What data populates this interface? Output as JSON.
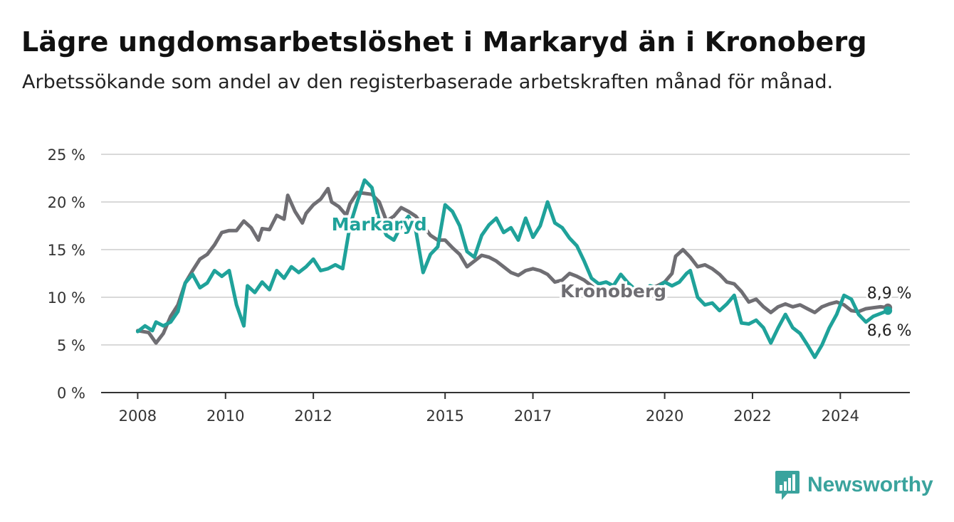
{
  "header": {
    "title": "Lägre ungdomsarbetslöshet i Markaryd än i Kronoberg",
    "subtitle": "Arbetssökande som andel av den registerbaserade arbetskraften månad för månad."
  },
  "brand": {
    "name": "Newsworthy",
    "color": "#3aa39d"
  },
  "chart_data": {
    "type": "line",
    "title": "Lägre ungdomsarbetslöshet i Markaryd än i Kronoberg",
    "subtitle": "Arbetssökande som andel av den registerbaserade arbetskraften månad för månad.",
    "xlabel": "",
    "ylabel": "",
    "x_ticks": [
      "2008",
      "2010",
      "2012",
      "2015",
      "2017",
      "2020",
      "2022",
      "2024"
    ],
    "y_ticks": [
      "0 %",
      "5 %",
      "10 %",
      "15 %",
      "20 %",
      "25 %"
    ],
    "ylim": [
      0,
      25
    ],
    "xlim": [
      "2007-03",
      "2025-08"
    ],
    "grid": "horizontal",
    "series": [
      {
        "name": "Kronoberg",
        "color": "#6f6e73",
        "end_label": "8,9 %",
        "points": [
          [
            "2008-01",
            6.5
          ],
          [
            "2008-04",
            6.3
          ],
          [
            "2008-06",
            5.2
          ],
          [
            "2008-08",
            6.2
          ],
          [
            "2008-10",
            8.0
          ],
          [
            "2008-12",
            9.2
          ],
          [
            "2009-02",
            11.5
          ],
          [
            "2009-04",
            12.8
          ],
          [
            "2009-06",
            14.0
          ],
          [
            "2009-08",
            14.5
          ],
          [
            "2009-10",
            15.5
          ],
          [
            "2009-12",
            16.8
          ],
          [
            "2010-02",
            17.0
          ],
          [
            "2010-04",
            17.0
          ],
          [
            "2010-06",
            18.0
          ],
          [
            "2010-08",
            17.3
          ],
          [
            "2010-10",
            16.0
          ],
          [
            "2010-11",
            17.2
          ],
          [
            "2011-01",
            17.1
          ],
          [
            "2011-03",
            18.6
          ],
          [
            "2011-05",
            18.2
          ],
          [
            "2011-06",
            20.7
          ],
          [
            "2011-08",
            19.0
          ],
          [
            "2011-10",
            17.8
          ],
          [
            "2011-11",
            18.8
          ],
          [
            "2012-01",
            19.7
          ],
          [
            "2012-03",
            20.3
          ],
          [
            "2012-05",
            21.4
          ],
          [
            "2012-06",
            20.0
          ],
          [
            "2012-08",
            19.5
          ],
          [
            "2012-10",
            18.6
          ],
          [
            "2012-11",
            19.8
          ],
          [
            "2013-01",
            21.0
          ],
          [
            "2013-03",
            20.9
          ],
          [
            "2013-05",
            20.8
          ],
          [
            "2013-07",
            20.0
          ],
          [
            "2013-09",
            18.0
          ],
          [
            "2013-11",
            18.5
          ],
          [
            "2014-01",
            19.4
          ],
          [
            "2014-03",
            19.0
          ],
          [
            "2014-05",
            18.5
          ],
          [
            "2014-07",
            17.5
          ],
          [
            "2014-09",
            16.5
          ],
          [
            "2014-11",
            16.0
          ],
          [
            "2015-01",
            16.0
          ],
          [
            "2015-03",
            15.2
          ],
          [
            "2015-05",
            14.5
          ],
          [
            "2015-07",
            13.2
          ],
          [
            "2015-09",
            13.8
          ],
          [
            "2015-11",
            14.4
          ],
          [
            "2016-01",
            14.2
          ],
          [
            "2016-03",
            13.8
          ],
          [
            "2016-05",
            13.2
          ],
          [
            "2016-07",
            12.6
          ],
          [
            "2016-09",
            12.3
          ],
          [
            "2016-11",
            12.8
          ],
          [
            "2017-01",
            13.0
          ],
          [
            "2017-03",
            12.8
          ],
          [
            "2017-05",
            12.4
          ],
          [
            "2017-07",
            11.6
          ],
          [
            "2017-09",
            11.8
          ],
          [
            "2017-11",
            12.5
          ],
          [
            "2018-01",
            12.2
          ],
          [
            "2018-03",
            11.8
          ],
          [
            "2018-05",
            11.2
          ],
          [
            "2018-07",
            10.6
          ],
          [
            "2018-09",
            10.4
          ],
          [
            "2018-11",
            10.6
          ],
          [
            "2019-01",
            10.2
          ],
          [
            "2019-03",
            10.4
          ],
          [
            "2019-05",
            10.8
          ],
          [
            "2019-07",
            10.5
          ],
          [
            "2019-09",
            10.9
          ],
          [
            "2019-11",
            11.2
          ],
          [
            "2020-01",
            11.6
          ],
          [
            "2020-03",
            12.5
          ],
          [
            "2020-04",
            14.3
          ],
          [
            "2020-06",
            15.0
          ],
          [
            "2020-08",
            14.2
          ],
          [
            "2020-10",
            13.2
          ],
          [
            "2020-12",
            13.4
          ],
          [
            "2021-02",
            13.0
          ],
          [
            "2021-04",
            12.4
          ],
          [
            "2021-06",
            11.6
          ],
          [
            "2021-08",
            11.4
          ],
          [
            "2021-10",
            10.6
          ],
          [
            "2021-12",
            9.5
          ],
          [
            "2022-02",
            9.8
          ],
          [
            "2022-04",
            9.0
          ],
          [
            "2022-06",
            8.4
          ],
          [
            "2022-08",
            9.0
          ],
          [
            "2022-10",
            9.3
          ],
          [
            "2022-12",
            9.0
          ],
          [
            "2023-02",
            9.2
          ],
          [
            "2023-04",
            8.8
          ],
          [
            "2023-06",
            8.4
          ],
          [
            "2023-08",
            9.0
          ],
          [
            "2023-10",
            9.3
          ],
          [
            "2023-12",
            9.5
          ],
          [
            "2024-02",
            9.2
          ],
          [
            "2024-04",
            8.6
          ],
          [
            "2024-06",
            8.5
          ],
          [
            "2024-08",
            8.8
          ],
          [
            "2024-10",
            8.9
          ],
          [
            "2024-12",
            9.0
          ],
          [
            "2025-02",
            8.9
          ]
        ]
      },
      {
        "name": "Markaryd",
        "color": "#1fa29a",
        "end_label": "8,6 %",
        "points": [
          [
            "2008-01",
            6.4
          ],
          [
            "2008-03",
            7.0
          ],
          [
            "2008-05",
            6.5
          ],
          [
            "2008-06",
            7.4
          ],
          [
            "2008-08",
            7.0
          ],
          [
            "2008-10",
            7.4
          ],
          [
            "2008-12",
            8.5
          ],
          [
            "2009-02",
            11.5
          ],
          [
            "2009-04",
            12.4
          ],
          [
            "2009-06",
            11.0
          ],
          [
            "2009-08",
            11.5
          ],
          [
            "2009-10",
            12.8
          ],
          [
            "2009-12",
            12.2
          ],
          [
            "2010-02",
            12.8
          ],
          [
            "2010-04",
            9.2
          ],
          [
            "2010-06",
            7.0
          ],
          [
            "2010-07",
            11.2
          ],
          [
            "2010-09",
            10.5
          ],
          [
            "2010-11",
            11.6
          ],
          [
            "2011-01",
            10.8
          ],
          [
            "2011-03",
            12.8
          ],
          [
            "2011-05",
            12.0
          ],
          [
            "2011-07",
            13.2
          ],
          [
            "2011-09",
            12.6
          ],
          [
            "2011-11",
            13.2
          ],
          [
            "2012-01",
            14.0
          ],
          [
            "2012-03",
            12.8
          ],
          [
            "2012-05",
            13.0
          ],
          [
            "2012-07",
            13.4
          ],
          [
            "2012-09",
            13.0
          ],
          [
            "2012-11",
            17.5
          ],
          [
            "2013-01",
            20.0
          ],
          [
            "2013-03",
            22.3
          ],
          [
            "2013-05",
            21.5
          ],
          [
            "2013-07",
            18.0
          ],
          [
            "2013-09",
            16.5
          ],
          [
            "2013-11",
            16.0
          ],
          [
            "2014-01",
            17.5
          ],
          [
            "2014-03",
            18.5
          ],
          [
            "2014-05",
            17.0
          ],
          [
            "2014-07",
            12.6
          ],
          [
            "2014-09",
            14.5
          ],
          [
            "2014-11",
            15.3
          ],
          [
            "2015-01",
            19.7
          ],
          [
            "2015-03",
            19.0
          ],
          [
            "2015-05",
            17.5
          ],
          [
            "2015-07",
            14.8
          ],
          [
            "2015-09",
            14.2
          ],
          [
            "2015-11",
            16.5
          ],
          [
            "2016-01",
            17.6
          ],
          [
            "2016-03",
            18.3
          ],
          [
            "2016-05",
            16.8
          ],
          [
            "2016-07",
            17.3
          ],
          [
            "2016-09",
            16.0
          ],
          [
            "2016-11",
            18.3
          ],
          [
            "2017-01",
            16.3
          ],
          [
            "2017-03",
            17.5
          ],
          [
            "2017-05",
            20.0
          ],
          [
            "2017-07",
            17.8
          ],
          [
            "2017-09",
            17.3
          ],
          [
            "2017-11",
            16.2
          ],
          [
            "2018-01",
            15.4
          ],
          [
            "2018-03",
            13.8
          ],
          [
            "2018-05",
            12.0
          ],
          [
            "2018-07",
            11.4
          ],
          [
            "2018-09",
            11.6
          ],
          [
            "2018-11",
            11.2
          ],
          [
            "2019-01",
            12.4
          ],
          [
            "2019-03",
            11.5
          ],
          [
            "2019-05",
            10.8
          ],
          [
            "2019-07",
            10.6
          ],
          [
            "2019-09",
            11.2
          ],
          [
            "2019-11",
            11.0
          ],
          [
            "2020-01",
            11.6
          ],
          [
            "2020-03",
            11.2
          ],
          [
            "2020-05",
            11.6
          ],
          [
            "2020-07",
            12.5
          ],
          [
            "2020-08",
            12.8
          ],
          [
            "2020-10",
            10.0
          ],
          [
            "2020-12",
            9.2
          ],
          [
            "2021-02",
            9.4
          ],
          [
            "2021-04",
            8.6
          ],
          [
            "2021-06",
            9.3
          ],
          [
            "2021-08",
            10.2
          ],
          [
            "2021-10",
            7.3
          ],
          [
            "2021-12",
            7.2
          ],
          [
            "2022-02",
            7.6
          ],
          [
            "2022-04",
            6.8
          ],
          [
            "2022-06",
            5.2
          ],
          [
            "2022-08",
            6.8
          ],
          [
            "2022-10",
            8.2
          ],
          [
            "2022-12",
            6.8
          ],
          [
            "2023-02",
            6.2
          ],
          [
            "2023-04",
            5.0
          ],
          [
            "2023-06",
            3.7
          ],
          [
            "2023-08",
            5.0
          ],
          [
            "2023-10",
            6.8
          ],
          [
            "2023-12",
            8.2
          ],
          [
            "2024-02",
            10.2
          ],
          [
            "2024-04",
            9.8
          ],
          [
            "2024-06",
            8.2
          ],
          [
            "2024-08",
            7.4
          ],
          [
            "2024-10",
            8.0
          ],
          [
            "2024-12",
            8.3
          ],
          [
            "2025-02",
            8.6
          ]
        ]
      }
    ],
    "series_labels": [
      {
        "series": "Markaryd",
        "text": "Markaryd",
        "at": [
          "2013-07",
          17.0
        ]
      },
      {
        "series": "Kronoberg",
        "text": "Kronoberg",
        "at": [
          "2018-11",
          10.0
        ]
      }
    ]
  }
}
